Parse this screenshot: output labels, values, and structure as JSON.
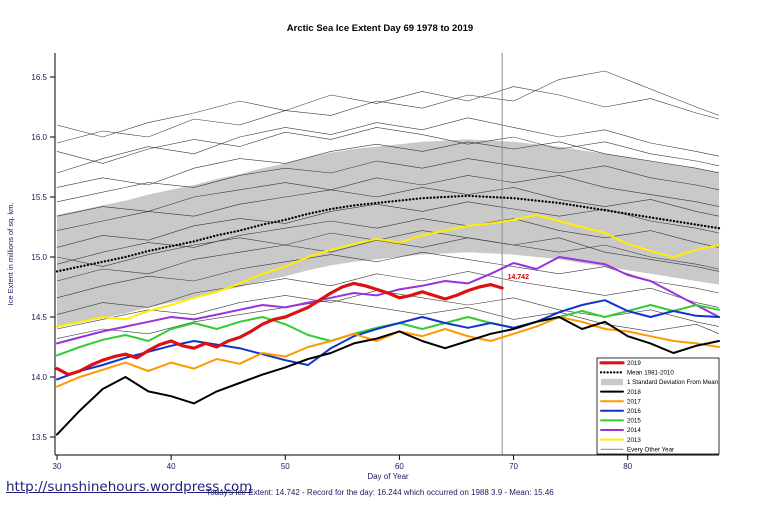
{
  "page": {
    "url_text": "http://sunshinehours.wordpress.com",
    "footer_caption": "Today's Ice Extent: 14.742  - Record for the day: 16.244 which occurred on 1988 3.9  - Mean: 15.46"
  },
  "chart_data": {
    "type": "line",
    "title": "Arctic Sea Ice Extent Day 69 1978 to 2019",
    "xlabel": "Day of Year",
    "ylabel": "Ice Extent in millions of sq. km.",
    "xlim": [
      30,
      88
    ],
    "ylim": [
      13.35,
      16.7
    ],
    "xticks": [
      30,
      40,
      50,
      60,
      70,
      80
    ],
    "yticks": [
      13.5,
      14.0,
      14.5,
      15.0,
      15.5,
      16.0,
      16.5
    ],
    "grid": false,
    "legend_position": "bottom-right",
    "vline_x": 69,
    "annotation": {
      "text": "14.742",
      "x": 69.3,
      "y": 14.8,
      "color": "#cc0000"
    },
    "colors": {
      "axis_text": "#1a1a5e",
      "annotation": "#cc0000",
      "vline": "#8f8f8f",
      "background_line": "#3a3a3a",
      "band": "#c9c9c9"
    },
    "x_main": [
      30,
      32,
      34,
      36,
      38,
      40,
      42,
      44,
      46,
      48,
      50,
      52,
      54,
      56,
      58,
      60,
      62,
      64,
      66,
      68,
      70,
      72,
      74,
      76,
      78,
      80,
      82,
      84,
      86,
      88
    ],
    "x_2019": [
      30,
      31,
      32,
      33,
      34,
      35,
      36,
      37,
      38,
      39,
      40,
      41,
      42,
      43,
      44,
      45,
      46,
      47,
      48,
      49,
      50,
      51,
      52,
      53,
      54,
      55,
      56,
      57,
      58,
      59,
      60,
      61,
      62,
      63,
      64,
      65,
      66,
      67,
      68,
      69
    ],
    "x_bg": [
      30,
      34,
      38,
      42,
      46,
      50,
      54,
      58,
      62,
      66,
      70,
      74,
      78,
      82,
      86,
      88
    ],
    "band": {
      "label": "1 Standard Deviation From Mean",
      "x_ref": "x_main",
      "upper": [
        15.35,
        15.39,
        15.43,
        15.47,
        15.52,
        15.56,
        15.6,
        15.65,
        15.69,
        15.74,
        15.78,
        15.83,
        15.87,
        15.9,
        15.92,
        15.94,
        15.96,
        15.97,
        15.98,
        15.97,
        15.96,
        15.94,
        15.92,
        15.89,
        15.86,
        15.83,
        15.8,
        15.77,
        15.74,
        15.71
      ],
      "lower": [
        14.41,
        14.45,
        14.49,
        14.53,
        14.58,
        14.62,
        14.66,
        14.71,
        14.75,
        14.8,
        14.84,
        14.89,
        14.93,
        14.96,
        14.98,
        15.0,
        15.02,
        15.03,
        15.04,
        15.03,
        15.02,
        15.0,
        14.98,
        14.95,
        14.92,
        14.89,
        14.86,
        14.83,
        14.8,
        14.77
      ],
      "color": "#c9c9c9"
    },
    "series": [
      {
        "name": "Mean 1981-2010",
        "color": "#000000",
        "width": 2.3,
        "dash": "0.1,3.4",
        "x_ref": "x_main",
        "values": [
          14.88,
          14.92,
          14.96,
          15.0,
          15.05,
          15.09,
          15.13,
          15.18,
          15.22,
          15.27,
          15.31,
          15.36,
          15.4,
          15.43,
          15.45,
          15.47,
          15.49,
          15.5,
          15.51,
          15.5,
          15.49,
          15.47,
          15.45,
          15.42,
          15.39,
          15.36,
          15.33,
          15.3,
          15.27,
          15.24
        ]
      },
      {
        "name": "2013",
        "color": "#ffee00",
        "width": 2,
        "x_ref": "x_main",
        "values": [
          14.42,
          14.46,
          14.5,
          14.48,
          14.55,
          14.6,
          14.66,
          14.71,
          14.78,
          14.86,
          14.92,
          15.0,
          15.06,
          15.11,
          15.15,
          15.12,
          15.18,
          15.22,
          15.26,
          15.28,
          15.31,
          15.35,
          15.3,
          15.25,
          15.2,
          15.11,
          15.05,
          15.0,
          15.06,
          15.1
        ]
      },
      {
        "name": "2014",
        "color": "#9933dd",
        "width": 2,
        "x_ref": "x_main",
        "values": [
          14.28,
          14.33,
          14.38,
          14.42,
          14.46,
          14.5,
          14.48,
          14.52,
          14.56,
          14.6,
          14.58,
          14.62,
          14.66,
          14.7,
          14.68,
          14.73,
          14.76,
          14.8,
          14.78,
          14.86,
          14.95,
          14.9,
          15.0,
          14.97,
          14.94,
          14.85,
          14.8,
          14.7,
          14.6,
          14.5
        ]
      },
      {
        "name": "2015",
        "color": "#33cc33",
        "width": 2,
        "x_ref": "x_main",
        "values": [
          14.18,
          14.25,
          14.31,
          14.35,
          14.3,
          14.4,
          14.45,
          14.4,
          14.46,
          14.5,
          14.44,
          14.35,
          14.3,
          14.36,
          14.41,
          14.45,
          14.4,
          14.45,
          14.5,
          14.45,
          14.41,
          14.46,
          14.5,
          14.55,
          14.5,
          14.55,
          14.6,
          14.55,
          14.6,
          14.56
        ]
      },
      {
        "name": "2016",
        "color": "#1133cc",
        "width": 2,
        "x_ref": "x_main",
        "values": [
          13.98,
          14.05,
          14.1,
          14.16,
          14.21,
          14.26,
          14.3,
          14.27,
          14.24,
          14.19,
          14.14,
          14.1,
          14.24,
          14.34,
          14.4,
          14.45,
          14.5,
          14.45,
          14.41,
          14.45,
          14.41,
          14.46,
          14.54,
          14.6,
          14.64,
          14.55,
          14.5,
          14.55,
          14.51,
          14.5
        ]
      },
      {
        "name": "2017",
        "color": "#ff9900",
        "width": 2,
        "x_ref": "x_main",
        "values": [
          13.92,
          14.0,
          14.06,
          14.12,
          14.05,
          14.12,
          14.07,
          14.15,
          14.11,
          14.2,
          14.17,
          14.25,
          14.3,
          14.36,
          14.3,
          14.38,
          14.34,
          14.4,
          14.34,
          14.3,
          14.36,
          14.42,
          14.5,
          14.46,
          14.4,
          14.38,
          14.34,
          14.3,
          14.28,
          14.25
        ]
      },
      {
        "name": "2018",
        "color": "#000000",
        "width": 2,
        "x_ref": "x_main",
        "values": [
          13.52,
          13.72,
          13.9,
          14.0,
          13.88,
          13.84,
          13.78,
          13.88,
          13.95,
          14.02,
          14.08,
          14.15,
          14.2,
          14.28,
          14.32,
          14.38,
          14.3,
          14.24,
          14.3,
          14.36,
          14.4,
          14.46,
          14.5,
          14.4,
          14.46,
          14.34,
          14.28,
          14.2,
          14.26,
          14.3
        ]
      },
      {
        "name": "2019",
        "color": "#dd1111",
        "width": 3.2,
        "x_ref": "x_2019",
        "values": [
          14.07,
          14.02,
          14.05,
          14.1,
          14.14,
          14.17,
          14.19,
          14.16,
          14.22,
          14.27,
          14.3,
          14.26,
          14.24,
          14.28,
          14.25,
          14.3,
          14.33,
          14.38,
          14.44,
          14.48,
          14.5,
          14.54,
          14.58,
          14.64,
          14.7,
          14.75,
          14.78,
          14.76,
          14.73,
          14.7,
          14.66,
          14.68,
          14.71,
          14.68,
          14.65,
          14.68,
          14.72,
          14.75,
          14.77,
          14.742
        ]
      }
    ],
    "background_series": {
      "label": "Every Other Year",
      "color": "#3a3a3a",
      "width": 0.6,
      "x_ref": "x_bg",
      "lines": [
        [
          15.95,
          16.05,
          16.0,
          16.15,
          16.1,
          16.22,
          16.18,
          16.3,
          16.24,
          16.35,
          16.3,
          16.48,
          16.55,
          16.4,
          16.25,
          16.18
        ],
        [
          16.1,
          16.0,
          16.12,
          16.2,
          16.3,
          16.22,
          16.35,
          16.28,
          16.38,
          16.3,
          16.42,
          16.35,
          16.25,
          16.32,
          16.2,
          16.15
        ],
        [
          15.88,
          15.78,
          15.9,
          15.98,
          15.92,
          16.04,
          15.98,
          16.08,
          16.02,
          15.94,
          16.0,
          15.9,
          15.96,
          15.86,
          15.8,
          15.76
        ],
        [
          15.7,
          15.82,
          15.92,
          15.86,
          16.0,
          16.08,
          16.02,
          16.12,
          16.06,
          16.16,
          16.08,
          16.0,
          16.06,
          15.95,
          15.88,
          15.84
        ],
        [
          15.58,
          15.66,
          15.6,
          15.74,
          15.82,
          15.78,
          15.88,
          15.94,
          15.88,
          15.96,
          15.9,
          15.96,
          15.86,
          15.8,
          15.74,
          15.7
        ],
        [
          15.46,
          15.54,
          15.62,
          15.58,
          15.68,
          15.74,
          15.7,
          15.8,
          15.74,
          15.82,
          15.76,
          15.7,
          15.76,
          15.66,
          15.6,
          15.56
        ],
        [
          15.34,
          15.42,
          15.38,
          15.5,
          15.56,
          15.62,
          15.56,
          15.66,
          15.6,
          15.68,
          15.62,
          15.68,
          15.58,
          15.52,
          15.46,
          15.42
        ],
        [
          15.22,
          15.3,
          15.38,
          15.34,
          15.44,
          15.5,
          15.56,
          15.5,
          15.58,
          15.52,
          15.58,
          15.48,
          15.42,
          15.48,
          15.38,
          15.34
        ],
        [
          15.08,
          15.18,
          15.14,
          15.26,
          15.32,
          15.28,
          15.38,
          15.44,
          15.38,
          15.46,
          15.4,
          15.34,
          15.4,
          15.3,
          15.24,
          15.2
        ],
        [
          15.0,
          14.92,
          15.02,
          15.1,
          15.16,
          15.1,
          15.2,
          15.14,
          15.22,
          15.16,
          15.1,
          15.04,
          15.1,
          15.0,
          14.94,
          14.9
        ],
        [
          14.94,
          15.04,
          15.12,
          15.08,
          15.18,
          15.24,
          15.3,
          15.24,
          15.32,
          15.26,
          15.32,
          15.22,
          15.16,
          15.22,
          15.12,
          15.08
        ],
        [
          14.8,
          14.9,
          14.86,
          14.98,
          15.04,
          15.1,
          15.04,
          15.14,
          15.08,
          15.16,
          15.1,
          15.16,
          15.04,
          14.98,
          14.92,
          14.88
        ],
        [
          14.66,
          14.76,
          14.84,
          14.8,
          14.9,
          14.96,
          15.02,
          14.96,
          15.04,
          14.98,
          14.92,
          14.86,
          14.92,
          14.8,
          14.74,
          14.7
        ],
        [
          14.52,
          14.62,
          14.58,
          14.7,
          14.76,
          14.82,
          14.76,
          14.86,
          14.8,
          14.88,
          14.8,
          14.74,
          14.68,
          14.74,
          14.62,
          14.58
        ],
        [
          14.4,
          14.48,
          14.56,
          14.52,
          14.62,
          14.68,
          14.62,
          14.72,
          14.66,
          14.6,
          14.66,
          14.56,
          14.5,
          14.56,
          14.46,
          14.42
        ],
        [
          14.32,
          14.4,
          14.36,
          14.46,
          14.52,
          14.58,
          14.64,
          14.58,
          14.52,
          14.58,
          14.48,
          14.54,
          14.44,
          14.38,
          14.44,
          14.36
        ]
      ]
    },
    "legend_entries": [
      {
        "label": "2019",
        "swatch": "line",
        "color": "#dd1111",
        "width": 3.2
      },
      {
        "label": "Mean 1981-2010",
        "swatch": "dashed-line",
        "color": "#000000",
        "width": 2.3
      },
      {
        "label": "1 Standard Deviation From Mean",
        "swatch": "box",
        "color": "#c9c9c9"
      },
      {
        "label": "2018",
        "swatch": "line",
        "color": "#000000",
        "width": 2
      },
      {
        "label": "2017",
        "swatch": "line",
        "color": "#ff9900",
        "width": 2
      },
      {
        "label": "2016",
        "swatch": "line",
        "color": "#1133cc",
        "width": 2
      },
      {
        "label": "2015",
        "swatch": "line",
        "color": "#33cc33",
        "width": 2
      },
      {
        "label": "2014",
        "swatch": "line",
        "color": "#9933dd",
        "width": 2
      },
      {
        "label": "2013",
        "swatch": "line",
        "color": "#ffee00",
        "width": 2
      },
      {
        "label": "Every Other Year",
        "swatch": "line",
        "color": "#3a3a3a",
        "width": 0.6
      }
    ]
  }
}
